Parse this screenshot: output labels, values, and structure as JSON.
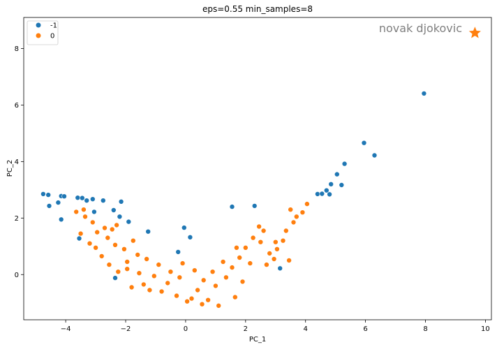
{
  "chart_data": {
    "type": "scatter",
    "title": "eps=0.55 min_samples=8",
    "xlabel": "PC_1",
    "ylabel": "PC_2",
    "xlim": [
      -5.4,
      10.2
    ],
    "ylim": [
      -1.6,
      9.1
    ],
    "x_ticks": [
      -4,
      -2,
      0,
      2,
      4,
      6,
      8,
      10
    ],
    "y_ticks": [
      0,
      2,
      4,
      6,
      8
    ],
    "grid": false,
    "legend_position": "top-left",
    "legend_entries": [
      "-1",
      "0"
    ],
    "colors": {
      "-1": "#1f77b4",
      "0": "#ff7f0e"
    },
    "series": [
      {
        "name": "-1",
        "points": [
          [
            -4.75,
            2.85
          ],
          [
            -4.58,
            2.82
          ],
          [
            -4.55,
            2.43
          ],
          [
            -4.25,
            2.55
          ],
          [
            -4.15,
            2.78
          ],
          [
            -4.05,
            2.77
          ],
          [
            -4.15,
            1.95
          ],
          [
            -3.6,
            2.72
          ],
          [
            -3.45,
            2.71
          ],
          [
            -3.3,
            2.62
          ],
          [
            -3.1,
            2.67
          ],
          [
            -3.05,
            2.22
          ],
          [
            -2.75,
            2.62
          ],
          [
            -2.4,
            2.28
          ],
          [
            -2.15,
            2.58
          ],
          [
            -2.2,
            2.05
          ],
          [
            -1.9,
            1.87
          ],
          [
            -1.25,
            1.52
          ],
          [
            -0.05,
            1.66
          ],
          [
            0.15,
            1.32
          ],
          [
            -0.25,
            0.8
          ],
          [
            -2.35,
            -0.12
          ],
          [
            -3.55,
            1.28
          ],
          [
            1.55,
            2.4
          ],
          [
            2.3,
            2.43
          ],
          [
            3.15,
            0.22
          ],
          [
            4.4,
            2.85
          ],
          [
            4.55,
            2.86
          ],
          [
            4.7,
            2.98
          ],
          [
            4.8,
            2.84
          ],
          [
            4.85,
            3.2
          ],
          [
            5.05,
            3.55
          ],
          [
            5.2,
            3.17
          ],
          [
            5.3,
            3.92
          ],
          [
            5.95,
            4.66
          ],
          [
            6.3,
            4.22
          ],
          [
            7.95,
            6.41
          ]
        ]
      },
      {
        "name": "0",
        "points": [
          [
            -3.65,
            2.22
          ],
          [
            -3.4,
            2.3
          ],
          [
            -3.5,
            1.45
          ],
          [
            -3.2,
            1.1
          ],
          [
            -3.0,
            0.95
          ],
          [
            -2.8,
            0.65
          ],
          [
            -2.95,
            1.5
          ],
          [
            -2.6,
            1.3
          ],
          [
            -2.45,
            1.6
          ],
          [
            -2.3,
            1.75
          ],
          [
            -2.55,
            0.35
          ],
          [
            -2.25,
            0.1
          ],
          [
            -1.95,
            0.2
          ],
          [
            3.9,
            2.2
          ],
          [
            4.05,
            2.5
          ],
          [
            3.7,
            2.05
          ],
          [
            3.5,
            2.3
          ],
          [
            3.35,
            1.55
          ],
          [
            3.25,
            1.2
          ],
          [
            3.0,
            1.15
          ],
          [
            2.8,
            0.75
          ],
          [
            3.45,
            0.5
          ],
          [
            3.05,
            0.9
          ],
          [
            2.6,
            1.55
          ],
          [
            2.45,
            1.7
          ],
          [
            2.25,
            1.3
          ],
          [
            2.0,
            0.95
          ],
          [
            1.8,
            0.6
          ],
          [
            1.55,
            0.25
          ],
          [
            1.35,
            -0.1
          ],
          [
            1.0,
            -0.4
          ],
          [
            0.75,
            -0.9
          ],
          [
            0.55,
            -1.05
          ],
          [
            1.1,
            -1.1
          ],
          [
            0.2,
            -0.85
          ],
          [
            -0.3,
            -0.75
          ],
          [
            -0.8,
            -0.6
          ],
          [
            -1.4,
            -0.35
          ],
          [
            -1.8,
            -0.45
          ],
          [
            -1.95,
            0.45
          ],
          [
            -1.6,
            0.7
          ],
          [
            -1.3,
            0.55
          ],
          [
            -0.9,
            0.35
          ],
          [
            -0.5,
            0.1
          ],
          [
            -0.2,
            -0.1
          ],
          [
            0.3,
            0.15
          ],
          [
            0.6,
            -0.2
          ],
          [
            1.9,
            -0.25
          ],
          [
            1.65,
            -0.8
          ],
          [
            2.15,
            0.4
          ],
          [
            1.25,
            0.45
          ],
          [
            0.9,
            0.1
          ],
          [
            -1.05,
            -0.05
          ],
          [
            -1.55,
            0.05
          ],
          [
            -2.05,
            0.9
          ],
          [
            -1.75,
            1.2
          ],
          [
            -2.35,
            1.05
          ],
          [
            -2.7,
            1.65
          ],
          [
            -3.1,
            1.85
          ],
          [
            -3.35,
            2.05
          ],
          [
            2.7,
            0.35
          ],
          [
            2.95,
            0.55
          ],
          [
            3.6,
            1.85
          ],
          [
            2.5,
            1.15
          ],
          [
            1.7,
            0.95
          ],
          [
            0.4,
            -0.55
          ],
          [
            -0.6,
            -0.3
          ],
          [
            -1.2,
            -0.55
          ],
          [
            -0.1,
            0.4
          ],
          [
            0.05,
            -0.95
          ]
        ]
      }
    ],
    "annotation": {
      "text": "novak djokovic",
      "marker_point": [
        9.65,
        8.55
      ],
      "marker": "star",
      "color": "#ff7f0e"
    }
  }
}
